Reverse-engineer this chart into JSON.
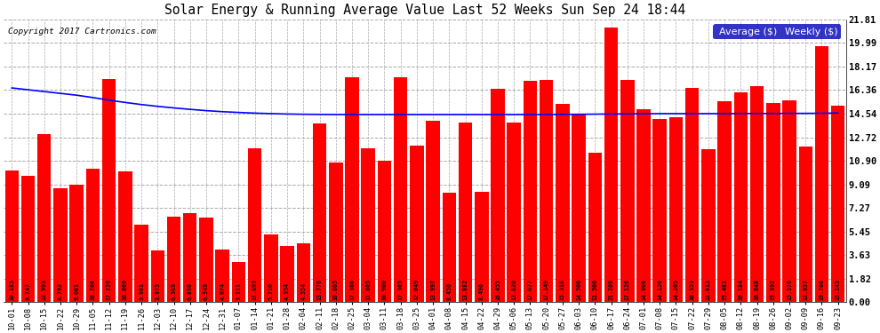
{
  "title": "Solar Energy & Running Average Value Last 52 Weeks Sun Sep 24 18:44",
  "copyright": "Copyright 2017 Cartronics.com",
  "yticks": [
    0.0,
    1.82,
    3.63,
    5.45,
    7.27,
    9.09,
    10.9,
    12.72,
    14.54,
    16.36,
    18.17,
    19.99,
    21.81
  ],
  "bar_color": "#FF0000",
  "avg_line_color": "#0000FF",
  "background_color": "#FFFFFF",
  "grid_color": "#AAAAAA",
  "categories": [
    "10-01",
    "10-08",
    "10-15",
    "10-22",
    "10-29",
    "11-05",
    "11-12",
    "11-19",
    "11-26",
    "12-03",
    "12-10",
    "12-17",
    "12-24",
    "12-31",
    "01-07",
    "01-14",
    "01-21",
    "01-28",
    "02-04",
    "02-11",
    "02-18",
    "02-25",
    "03-04",
    "03-11",
    "03-18",
    "03-25",
    "04-01",
    "04-08",
    "04-15",
    "04-22",
    "04-29",
    "05-06",
    "05-13",
    "05-20",
    "05-27",
    "06-03",
    "06-10",
    "06-17",
    "06-24",
    "07-01",
    "07-08",
    "07-15",
    "07-22",
    "07-29",
    "08-05",
    "08-12",
    "08-19",
    "08-26",
    "09-02",
    "09-09",
    "09-16",
    "09-23"
  ],
  "weekly_values": [
    10.185,
    9.747,
    12.993,
    8.792,
    9.081,
    10.268,
    17.226,
    10.069,
    5.961,
    3.975,
    6.569,
    6.89,
    6.549,
    4.074,
    3.111,
    11.893,
    5.21,
    4.354,
    4.554,
    13.776,
    10.805,
    17.36,
    11.865,
    10.9,
    17.365,
    12.049,
    13.997,
    8.456,
    13.882,
    8.496,
    16.455,
    13.82,
    17.077,
    17.149,
    15.318,
    14.5,
    11.506,
    21.209,
    17.126,
    14.908,
    14.126,
    14.265,
    16.553,
    11.813,
    15.481,
    16.184,
    16.648,
    15.392,
    15.576,
    12.037,
    19.708,
    15.143
  ],
  "avg_values": [
    16.52,
    16.38,
    16.24,
    16.1,
    15.96,
    15.78,
    15.58,
    15.4,
    15.24,
    15.1,
    14.98,
    14.87,
    14.77,
    14.69,
    14.63,
    14.58,
    14.54,
    14.51,
    14.49,
    14.48,
    14.47,
    14.47,
    14.47,
    14.47,
    14.47,
    14.47,
    14.47,
    14.47,
    14.47,
    14.47,
    14.47,
    14.47,
    14.47,
    14.47,
    14.48,
    14.49,
    14.5,
    14.51,
    14.52,
    14.53,
    14.54,
    14.54,
    14.54,
    14.54,
    14.54,
    14.55,
    14.55,
    14.55,
    14.56,
    14.56,
    14.57,
    14.59
  ],
  "ymax": 21.81,
  "legend_avg_label": "Average ($)",
  "legend_weekly_label": "Weekly ($)"
}
